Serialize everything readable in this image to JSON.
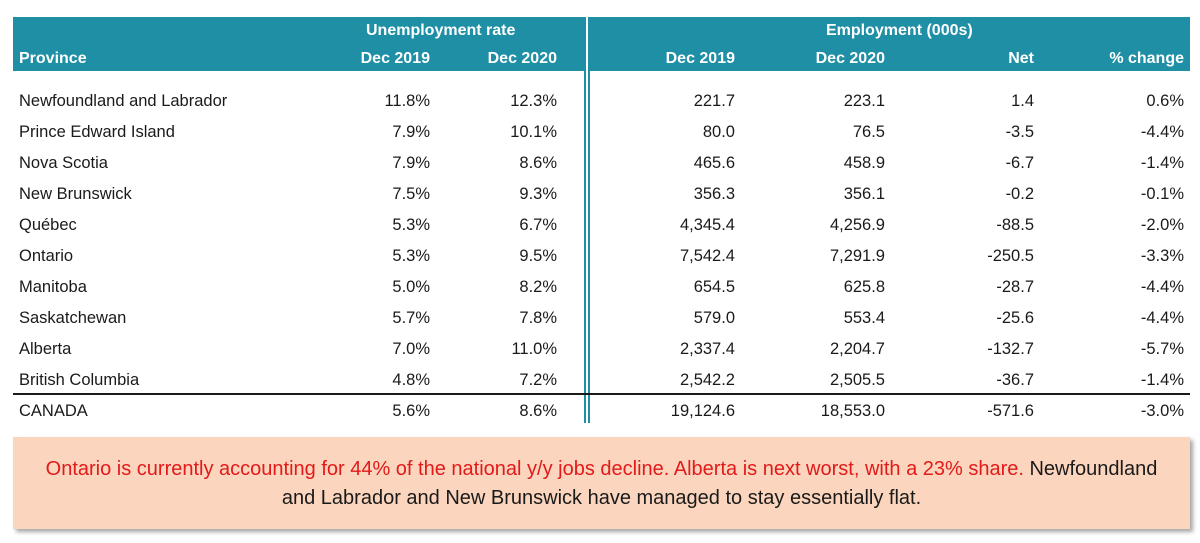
{
  "header": {
    "group_unemployment": "Unemployment rate",
    "group_employment": "Employment (000s)",
    "col_province": "Province",
    "col_ur_2019": "Dec 2019",
    "col_ur_2020": "Dec 2020",
    "col_emp_2019": "Dec 2019",
    "col_emp_2020": "Dec 2020",
    "col_net": "Net",
    "col_pct": "% change"
  },
  "rows": [
    {
      "name": "Newfoundland and Labrador",
      "ur2019": "11.8%",
      "ur2020": "12.3%",
      "emp2019": "221.7",
      "emp2020": "223.1",
      "net": "1.4",
      "pct": "0.6%"
    },
    {
      "name": "Prince Edward Island",
      "ur2019": "7.9%",
      "ur2020": "10.1%",
      "emp2019": "80.0",
      "emp2020": "76.5",
      "net": "-3.5",
      "pct": "-4.4%"
    },
    {
      "name": "Nova Scotia",
      "ur2019": "7.9%",
      "ur2020": "8.6%",
      "emp2019": "465.6",
      "emp2020": "458.9",
      "net": "-6.7",
      "pct": "-1.4%"
    },
    {
      "name": "New Brunswick",
      "ur2019": "7.5%",
      "ur2020": "9.3%",
      "emp2019": "356.3",
      "emp2020": "356.1",
      "net": "-0.2",
      "pct": "-0.1%"
    },
    {
      "name": "Québec",
      "ur2019": "5.3%",
      "ur2020": "6.7%",
      "emp2019": "4,345.4",
      "emp2020": "4,256.9",
      "net": "-88.5",
      "pct": "-2.0%"
    },
    {
      "name": "Ontario",
      "ur2019": "5.3%",
      "ur2020": "9.5%",
      "emp2019": "7,542.4",
      "emp2020": "7,291.9",
      "net": "-250.5",
      "pct": "-3.3%"
    },
    {
      "name": "Manitoba",
      "ur2019": "5.0%",
      "ur2020": "8.2%",
      "emp2019": "654.5",
      "emp2020": "625.8",
      "net": "-28.7",
      "pct": "-4.4%"
    },
    {
      "name": "Saskatchewan",
      "ur2019": "5.7%",
      "ur2020": "7.8%",
      "emp2019": "579.0",
      "emp2020": "553.4",
      "net": "-25.6",
      "pct": "-4.4%"
    },
    {
      "name": "Alberta",
      "ur2019": "7.0%",
      "ur2020": "11.0%",
      "emp2019": "2,337.4",
      "emp2020": "2,204.7",
      "net": "-132.7",
      "pct": "-5.7%"
    },
    {
      "name": "British Columbia",
      "ur2019": "4.8%",
      "ur2020": "7.2%",
      "emp2019": "2,542.2",
      "emp2020": "2,505.5",
      "net": "-36.7",
      "pct": "-1.4%"
    }
  ],
  "total": {
    "name": "CANADA",
    "ur2019": "5.6%",
    "ur2020": "8.6%",
    "emp2019": "19,124.6",
    "emp2020": "18,553.0",
    "net": "-571.6",
    "pct": "-3.0%"
  },
  "note": {
    "highlight": "Ontario is currently accounting for 44% of the national y/y jobs decline. Alberta is next worst, with a 23% share.",
    "rest": "Newfoundland and Labrador and New Brunswick have managed to stay essentially flat."
  },
  "colors": {
    "header_bg": "#1f8fa6",
    "note_bg": "#fbd5bd",
    "note_highlight": "#e21a1a"
  }
}
